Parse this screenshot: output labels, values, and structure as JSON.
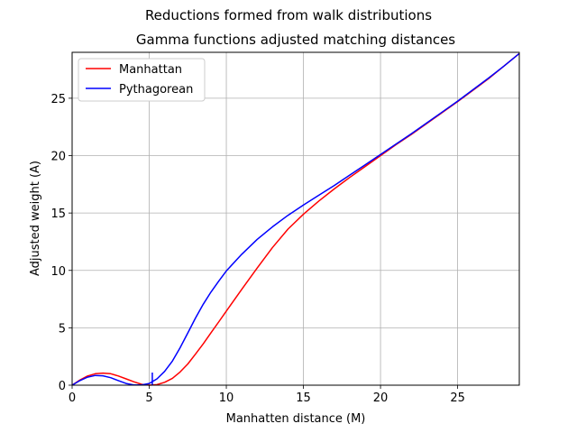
{
  "figure": {
    "suptitle": "Reductions formed from walk distributions"
  },
  "chart_data": {
    "type": "line",
    "title": "Gamma functions adjusted matching distances",
    "xlabel": "Manhatten distance (M)",
    "ylabel": "Adjusted weight (A)",
    "xlim": [
      0,
      29
    ],
    "ylim": [
      0,
      29
    ],
    "xticks": [
      0,
      5,
      10,
      15,
      20,
      25
    ],
    "yticks": [
      0,
      5,
      10,
      15,
      20,
      25
    ],
    "grid": true,
    "legend_position": "top-left",
    "series": [
      {
        "name": "Manhattan",
        "color": "#ff0000",
        "x": [
          0,
          0.5,
          1,
          1.5,
          2,
          2.5,
          3,
          3.5,
          4,
          4.5,
          5,
          5.5,
          6,
          6.5,
          7,
          7.5,
          8,
          8.5,
          9,
          9.5,
          10,
          11,
          12,
          13,
          14,
          15,
          16,
          17,
          18,
          19,
          20,
          21,
          22,
          23,
          24,
          25,
          26,
          27,
          28,
          29
        ],
        "y": [
          0,
          0.45,
          0.8,
          1.0,
          1.05,
          1.0,
          0.8,
          0.55,
          0.3,
          0.08,
          0,
          0.05,
          0.25,
          0.6,
          1.15,
          1.85,
          2.7,
          3.6,
          4.55,
          5.5,
          6.45,
          8.35,
          10.2,
          12.0,
          13.6,
          14.9,
          16.05,
          17.1,
          18.1,
          19.05,
          20.0,
          20.95,
          21.85,
          22.8,
          23.75,
          24.7,
          25.7,
          26.7,
          27.8,
          28.9
        ]
      },
      {
        "name": "Pythagorean",
        "color": "#0000ff",
        "x": [
          0,
          0.5,
          1,
          1.5,
          2,
          2.5,
          3,
          3.5,
          4,
          4.5,
          5,
          5.5,
          6,
          6.5,
          7,
          7.5,
          8,
          8.5,
          9,
          9.5,
          10,
          11,
          12,
          13,
          14,
          15,
          16,
          17,
          18,
          19,
          20,
          21,
          22,
          23,
          24,
          25,
          26,
          27,
          28,
          29
        ],
        "y": [
          0,
          0.4,
          0.7,
          0.85,
          0.82,
          0.65,
          0.4,
          0.15,
          0.02,
          0.02,
          0.15,
          0.55,
          1.2,
          2.1,
          3.25,
          4.55,
          5.85,
          7.05,
          8.1,
          9.05,
          9.95,
          11.4,
          12.7,
          13.8,
          14.8,
          15.7,
          16.55,
          17.4,
          18.3,
          19.2,
          20.1,
          21.0,
          21.9,
          22.85,
          23.8,
          24.75,
          25.75,
          26.75,
          27.8,
          28.9
        ]
      }
    ],
    "annotation_marker": {
      "x": 5.2,
      "y_from": 0,
      "y_to": 1.1,
      "color": "#0000ff"
    }
  }
}
